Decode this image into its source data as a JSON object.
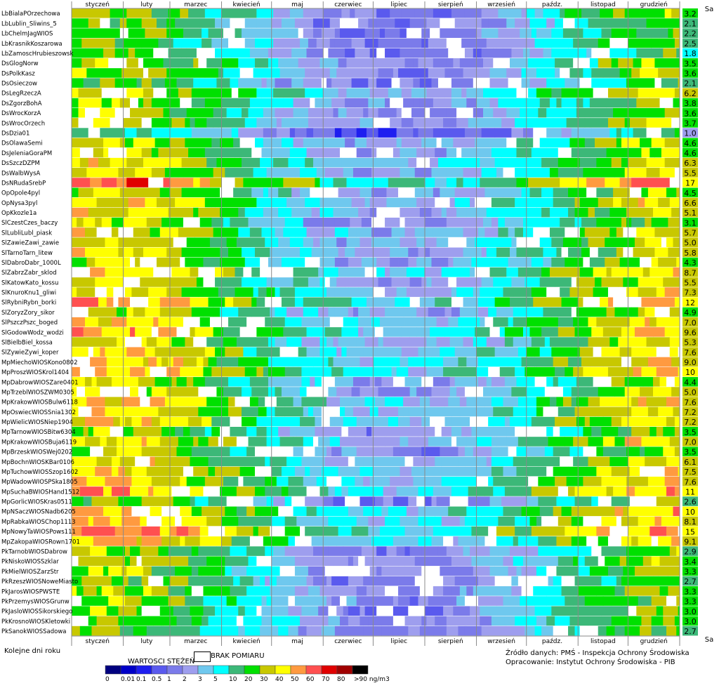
{
  "header": {
    "months": [
      "styczeń",
      "luty",
      "marzec",
      "kwiecień",
      "maj",
      "czerwiec",
      "lipiec",
      "sierpień",
      "wrzesień",
      "paźdz.",
      "listopad",
      "grudzień"
    ],
    "sa_label": "Sa"
  },
  "footer": {
    "x_caption": "Kolejne dni roku",
    "legend_title": "WARTOSCI STĘŻEŃ",
    "missing_label": "BRAK POMIARU",
    "source_line": "Źródło danych: PMŚ - Inspekcja Ochrony Środowiska",
    "author_line": "Opracowanie: Instytut Ochrony Środowiska - PIB"
  },
  "chart_data": {
    "type": "heatmap",
    "x_axis": "day of year (monthly bands)",
    "unit": "ng/m3",
    "legend_bins": [
      {
        "label": "0",
        "color": "#00007f"
      },
      {
        "label": "0.01",
        "color": "#0000c8"
      },
      {
        "label": "0.1",
        "color": "#1e1ef0"
      },
      {
        "label": "0.5",
        "color": "#5a5aee"
      },
      {
        "label": "1",
        "color": "#7b7bea"
      },
      {
        "label": "2",
        "color": "#9e9eee"
      },
      {
        "label": "3",
        "color": "#6fc8ee"
      },
      {
        "label": "5",
        "color": "#00ffff"
      },
      {
        "label": "10",
        "color": "#3cb878"
      },
      {
        "label": "20",
        "color": "#00e000"
      },
      {
        "label": "30",
        "color": "#c8c800"
      },
      {
        "label": "40",
        "color": "#ffff00"
      },
      {
        "label": "50",
        "color": "#ff9a40"
      },
      {
        "label": "60",
        "color": "#ff5050"
      },
      {
        "label": "70",
        "color": "#e00000"
      },
      {
        "label": "80",
        "color": "#a00000"
      },
      {
        "label": ">90 ng/m3",
        "color": "#000000"
      }
    ],
    "missing_color": "#ffffff",
    "rows": [
      {
        "station": "LbBialaPOrzechowa",
        "sa": "3.2"
      },
      {
        "station": "LbLublin_Sliwins_5",
        "sa": "2.1"
      },
      {
        "station": "LbChelmJagWIOS",
        "sa": "2.2"
      },
      {
        "station": "LbKrasnikKoszarowa",
        "sa": "2.5"
      },
      {
        "station": "LbZamoscHrubieszowsk",
        "sa": "1.8"
      },
      {
        "station": "DsGlogNorw",
        "sa": "3.5"
      },
      {
        "station": "DsPolkKasz",
        "sa": "3.6"
      },
      {
        "station": "DsOsieczow",
        "sa": "2.1"
      },
      {
        "station": "DsLegRzeczA",
        "sa": "6.2"
      },
      {
        "station": "DsZgorzBohA",
        "sa": "3.8"
      },
      {
        "station": "DsWrocKorzA",
        "sa": "3.6"
      },
      {
        "station": "DsWrocOrzech",
        "sa": "3.7"
      },
      {
        "station": "DsDzia01",
        "sa": "1.0"
      },
      {
        "station": "DsOlawaSemi",
        "sa": "4.6"
      },
      {
        "station": "DsJeleniaGoraPM",
        "sa": "4.6"
      },
      {
        "station": "DsSzczDZPM",
        "sa": "6.3"
      },
      {
        "station": "DsWalbWysA",
        "sa": "5.5"
      },
      {
        "station": "DsNRudaSrebP",
        "sa": "17"
      },
      {
        "station": "OpOpole4pyl",
        "sa": "4.5"
      },
      {
        "station": "OpNysa3pyl",
        "sa": "6.6"
      },
      {
        "station": "OpKkozle1a",
        "sa": "5.1"
      },
      {
        "station": "SlCzestCzes_baczy",
        "sa": "3.1"
      },
      {
        "station": "SlLubliLubl_piask",
        "sa": "5.7"
      },
      {
        "station": "SlZawieZawi_zawie",
        "sa": "5.0"
      },
      {
        "station": "SlTarnoTarn_litew",
        "sa": "5.8"
      },
      {
        "station": "SlDabroDabr_1000L",
        "sa": "4.3"
      },
      {
        "station": "SlZabrzZabr_sklod",
        "sa": "8.7"
      },
      {
        "station": "SlKatowKato_kossu",
        "sa": "5.5"
      },
      {
        "station": "SlKnuroKnu1_gliwi",
        "sa": "7.3"
      },
      {
        "station": "SlRybniRybn_borki",
        "sa": "12"
      },
      {
        "station": "SlZoryzZory_sikor",
        "sa": "4.9"
      },
      {
        "station": "SlPszczPszc_boged",
        "sa": "7.0"
      },
      {
        "station": "SlGodowWodz_wodzi",
        "sa": "9.6"
      },
      {
        "station": "SlBielbBiel_kossa",
        "sa": "5.3"
      },
      {
        "station": "SlZywieZywi_koper",
        "sa": "7.6"
      },
      {
        "station": "MpMiechoWIOSKono0802",
        "sa": "9.0"
      },
      {
        "station": "MpProszWIOSKrol1404",
        "sa": "10"
      },
      {
        "station": "MpDabrowWIOSZare0401",
        "sa": "4.4"
      },
      {
        "station": "MpTrzeblWIOSZWM0305",
        "sa": "5.0"
      },
      {
        "station": "MpKrakowWIOSBulw6118",
        "sa": "7.6"
      },
      {
        "station": "MpOswiecWIOSSnia1302",
        "sa": "7.2"
      },
      {
        "station": "MpWielicWIOSNiep1904",
        "sa": "7.2"
      },
      {
        "station": "MpTarnowWIOSBitw6304",
        "sa": "3.5"
      },
      {
        "station": "MpKrakowWIOSBuja6119",
        "sa": "7.0"
      },
      {
        "station": "MpBrzeskWIOSWej0202",
        "sa": "3.5"
      },
      {
        "station": "MpBochnWIOSKBar0106",
        "sa": "6.1"
      },
      {
        "station": "MpTuchowWIOSSzop1602",
        "sa": "7.5"
      },
      {
        "station": "MpWadowWIOSPSka1805",
        "sa": "7.6"
      },
      {
        "station": "MpSuchaBWIOSHand1512",
        "sa": "11"
      },
      {
        "station": "MpGorlicWIOSKras0511",
        "sa": "2.6"
      },
      {
        "station": "MpNSaczWIOSNadb6205",
        "sa": "10"
      },
      {
        "station": "MpRabkaWIOSChop1113",
        "sa": "8.1"
      },
      {
        "station": "MpNowyTaWIOSPows111",
        "sa": "15"
      },
      {
        "station": "MpZakopaWIOSRown1701",
        "sa": "9.1"
      },
      {
        "station": "PkTarnobWIOSDabrow",
        "sa": "2.9"
      },
      {
        "station": "PkNiskoWIOSSzklar",
        "sa": "3.4"
      },
      {
        "station": "PkMielWIOSZarzStr",
        "sa": "3.3"
      },
      {
        "station": "PkRzeszWIOSNoweMiasto",
        "sa": "2.7"
      },
      {
        "station": "PkJarosWIOSPWSTE",
        "sa": "3.3"
      },
      {
        "station": "PkPrzemysWIOSGrunw",
        "sa": "3.3"
      },
      {
        "station": "PkJasloWIOSSikorskiego",
        "sa": "3.0"
      },
      {
        "station": "PkKrosnoWIOSKletowki",
        "sa": "3.0"
      },
      {
        "station": "PkSanokWIOSSadowa",
        "sa": "2.7"
      }
    ],
    "sa_colors_by_range": {
      "lt3": "#3cb878",
      "3to5": "#00e000",
      "5to10": "#c8c800",
      "ge10": "#ffff00",
      "lt2": "#00ffff",
      "lt1.5": "#9e9eee"
    }
  }
}
